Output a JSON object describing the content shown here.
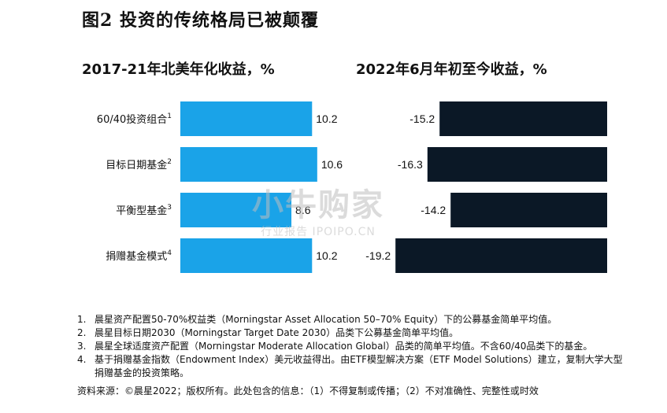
{
  "title": "图2 投资的传统格局已被颠覆",
  "watermark": {
    "main": "小牛购家",
    "sub": "行业报告 IPOIPO.CN"
  },
  "colors": {
    "left_bar": "#1aa3e8",
    "right_bar": "#0b1826"
  },
  "chart_data": [
    {
      "type": "bar",
      "orientation": "horizontal",
      "title": "2017-21年北美年化收益，%",
      "categories": [
        "60/40投资组合",
        "目标日期基金",
        "平衡型基金",
        "捐赠基金模式"
      ],
      "footnote_marks": [
        "1",
        "2",
        "3",
        "4"
      ],
      "values": [
        10.2,
        10.6,
        8.6,
        10.2
      ],
      "value_labels": [
        "10.2",
        "10.6",
        "8.6",
        "10.2"
      ]
    },
    {
      "type": "bar",
      "orientation": "horizontal",
      "title": "2022年6月年初至今收益，%",
      "categories": [
        "60/40投资组合",
        "目标日期基金",
        "平衡型基金",
        "捐赠基金模式"
      ],
      "values": [
        -15.2,
        -16.3,
        -14.2,
        -19.2
      ],
      "value_labels": [
        "-15.2",
        "-16.3",
        "-14.2",
        "-19.2"
      ]
    }
  ],
  "notes": [
    {
      "num": "1.",
      "text": "晨星资产配置50-70%权益类（Morningstar Asset Allocation 50–70% Equity）下的公募基金简单平均值。"
    },
    {
      "num": "2.",
      "text": "晨星目标日期2030（Morningstar Target Date 2030）品类下公募基金简单平均值。"
    },
    {
      "num": "3.",
      "text": "晨星全球适度资产配置（Morningstar Moderate Allocation Global）品类的简单平均值。不含60/40品类下的基金。"
    },
    {
      "num": "4.",
      "text": "基于捐赠基金指数（Endowment Index）美元收益得出。由ETF模型解决方案（ETF Model Solutions）建立，复制大学大型捐赠基金的投资策略。"
    }
  ],
  "source": "资料来源：©晨星2022；版权所有。此处包含的信息：（1）不得复制或传播；（2）不对准确性、完整性或时效"
}
